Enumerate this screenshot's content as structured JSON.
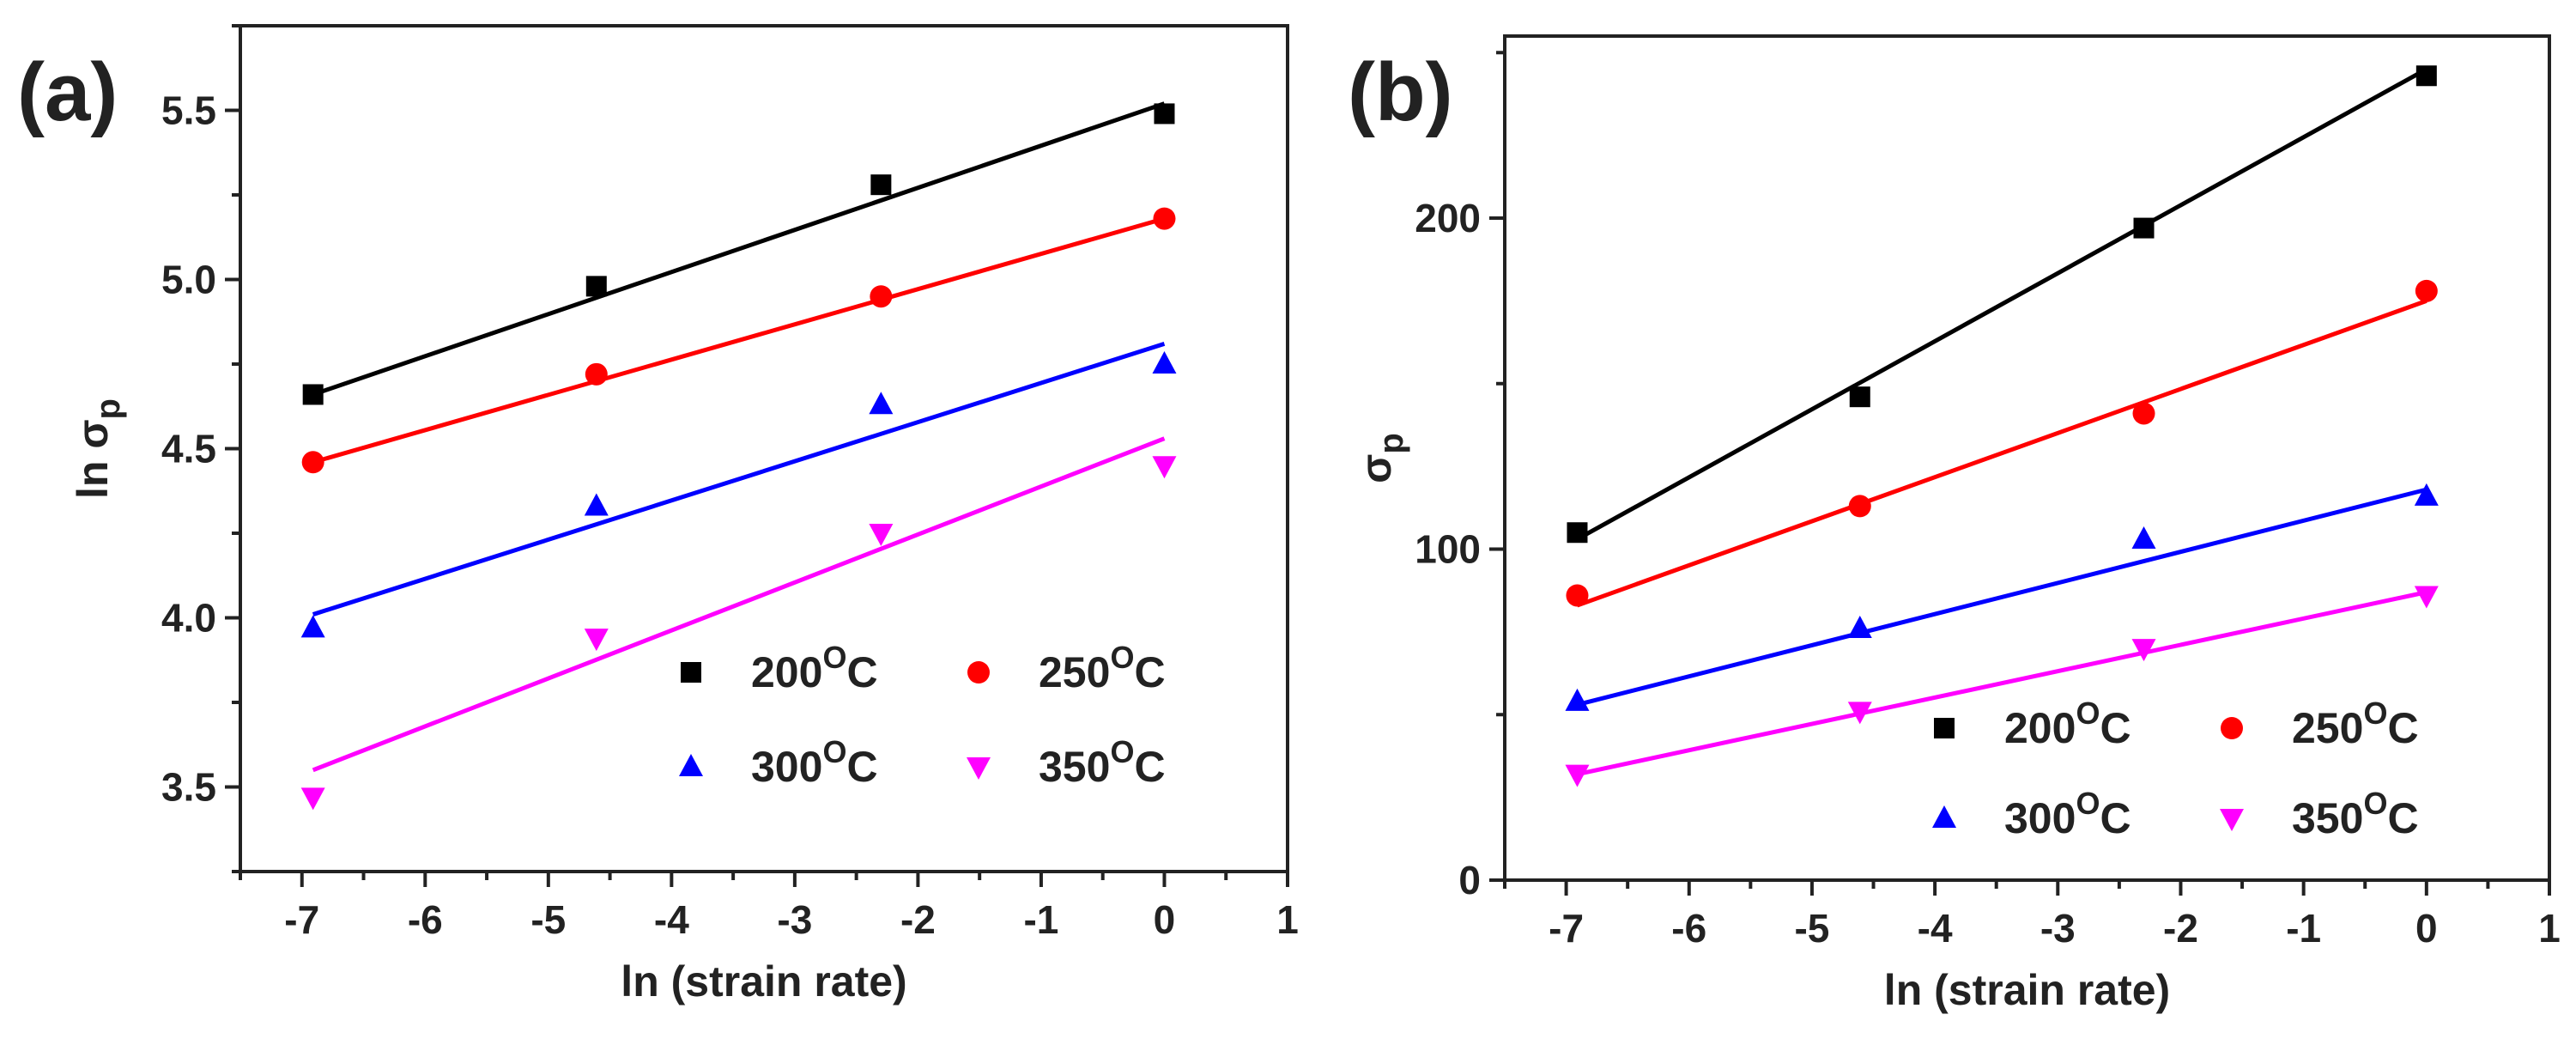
{
  "chart_data": [
    {
      "type": "scatter",
      "panel_label": "(a)",
      "title": "",
      "xlabel": "ln (strain rate)",
      "ylabel": {
        "main": "ln σ",
        "sub": "p"
      },
      "xlim": [
        -7.5,
        1
      ],
      "ylim": [
        3.25,
        5.75
      ],
      "xticks": [
        -7,
        -6,
        -5,
        -4,
        -3,
        -2,
        -1,
        0,
        1
      ],
      "yticks": [
        3.5,
        4.0,
        4.5,
        5.0,
        5.5
      ],
      "ytick_labels": [
        "3.5",
        "4.0",
        "4.5",
        "5.0",
        "5.5"
      ],
      "grid": false,
      "legend_position": "bottom-right",
      "series": [
        {
          "name": "200",
          "unit": "C",
          "sup": "O",
          "color": "#000000",
          "marker": "square",
          "x": [
            -6.91,
            -4.61,
            -2.3,
            0.0
          ],
          "y": [
            4.66,
            4.98,
            5.28,
            5.49
          ],
          "fit": {
            "x": [
              -6.91,
              0.0
            ],
            "y": [
              4.66,
              5.52
            ]
          }
        },
        {
          "name": "250",
          "unit": "C",
          "sup": "O",
          "color": "#ff0000",
          "marker": "circle",
          "x": [
            -6.91,
            -4.61,
            -2.3,
            0.0
          ],
          "y": [
            4.46,
            4.72,
            4.95,
            5.18
          ],
          "fit": {
            "x": [
              -6.91,
              0.0
            ],
            "y": [
              4.46,
              5.18
            ]
          }
        },
        {
          "name": "300",
          "unit": "C",
          "sup": "O",
          "color": "#0000ff",
          "marker": "triangle-up",
          "x": [
            -6.91,
            -4.61,
            -2.3,
            0.0
          ],
          "y": [
            3.97,
            4.33,
            4.63,
            4.75
          ],
          "fit": {
            "x": [
              -6.91,
              0.0
            ],
            "y": [
              4.01,
              4.81
            ]
          }
        },
        {
          "name": "350",
          "unit": "C",
          "sup": "O",
          "color": "#ff00ff",
          "marker": "triangle-down",
          "x": [
            -6.91,
            -4.61,
            -2.3,
            0.0
          ],
          "y": [
            3.47,
            3.94,
            4.25,
            4.45
          ],
          "fit": {
            "x": [
              -6.91,
              0.0
            ],
            "y": [
              3.55,
              4.53
            ]
          }
        }
      ]
    },
    {
      "type": "scatter",
      "panel_label": "(b)",
      "title": "",
      "xlabel": "ln (strain rate)",
      "ylabel": {
        "main": "σ",
        "sub": "p"
      },
      "xlim": [
        -7.5,
        1
      ],
      "ylim": [
        0,
        255
      ],
      "xticks": [
        -7,
        -6,
        -5,
        -4,
        -3,
        -2,
        -1,
        0,
        1
      ],
      "yticks": [
        0,
        100,
        200
      ],
      "ytick_labels": [
        "0",
        "100",
        "200"
      ],
      "grid": false,
      "legend_position": "bottom-right",
      "series": [
        {
          "name": "200",
          "unit": "C",
          "sup": "O",
          "color": "#000000",
          "marker": "square",
          "x": [
            -6.91,
            -4.61,
            -2.3,
            0.0
          ],
          "y": [
            105,
            146,
            197,
            243
          ],
          "fit": {
            "x": [
              -6.91,
              0.0
            ],
            "y": [
              103,
              245
            ]
          }
        },
        {
          "name": "250",
          "unit": "C",
          "sup": "O",
          "color": "#ff0000",
          "marker": "circle",
          "x": [
            -6.91,
            -4.61,
            -2.3,
            0.0
          ],
          "y": [
            86,
            113,
            141,
            178
          ],
          "fit": {
            "x": [
              -6.91,
              0.0
            ],
            "y": [
              83,
              175
            ]
          }
        },
        {
          "name": "300",
          "unit": "C",
          "sup": "O",
          "color": "#0000ff",
          "marker": "triangle-up",
          "x": [
            -6.91,
            -4.61,
            -2.3,
            0.0
          ],
          "y": [
            54,
            76,
            103,
            116
          ],
          "fit": {
            "x": [
              -6.91,
              0.0
            ],
            "y": [
              53,
              118
            ]
          }
        },
        {
          "name": "350",
          "unit": "C",
          "sup": "O",
          "color": "#ff00ff",
          "marker": "triangle-down",
          "x": [
            -6.91,
            -4.61,
            -2.3,
            0.0
          ],
          "y": [
            32,
            51,
            70,
            86
          ],
          "fit": {
            "x": [
              -6.91,
              0.0
            ],
            "y": [
              32,
              87
            ]
          }
        }
      ]
    }
  ]
}
